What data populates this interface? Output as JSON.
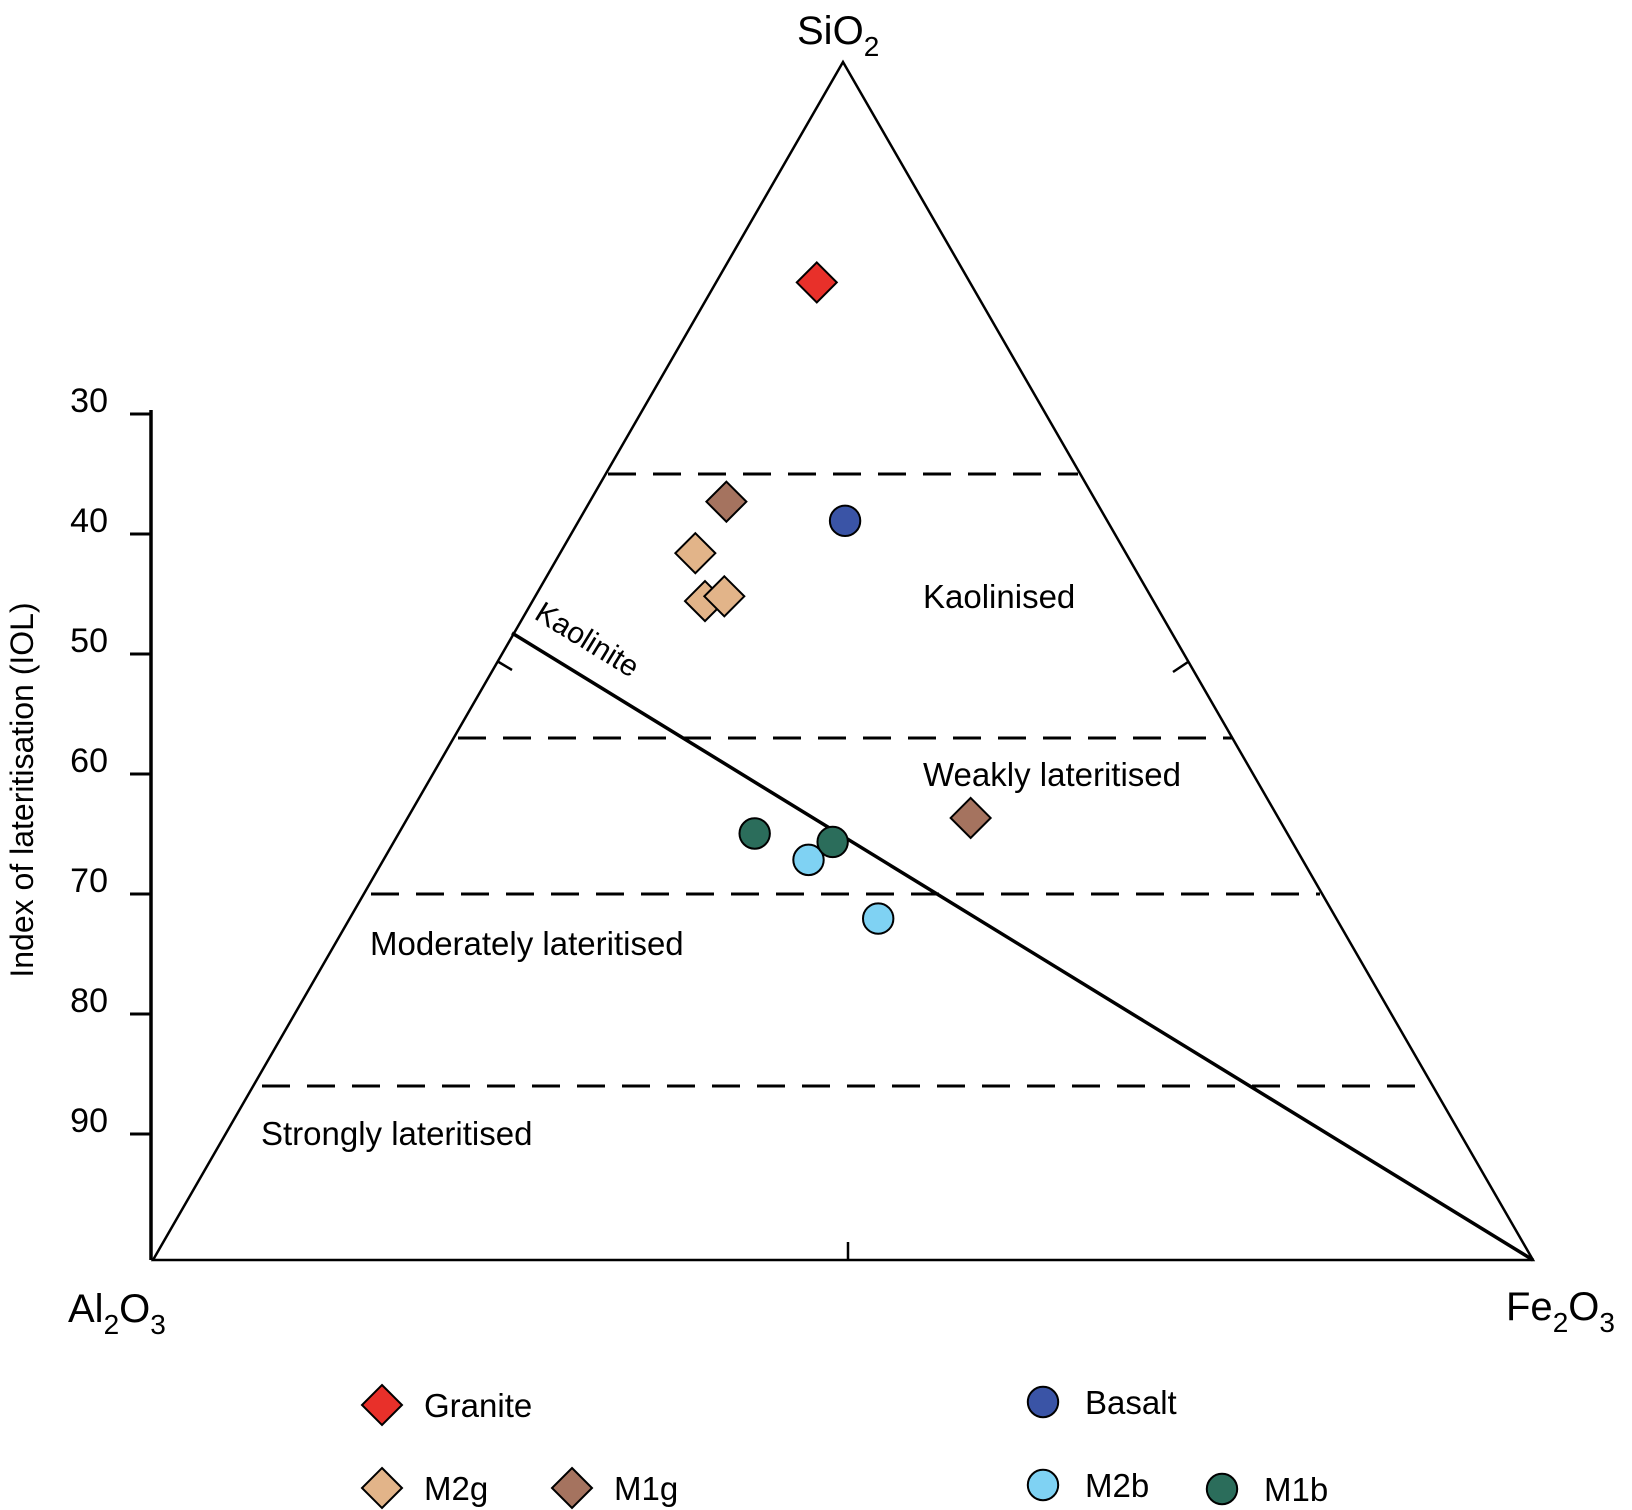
{
  "chart_data": {
    "type": "scatter",
    "subtype": "ternary",
    "apices": {
      "top": {
        "base": "SiO",
        "sub": "2"
      },
      "left": {
        "parts": [
          {
            "t": "Al"
          },
          {
            "s": "2"
          },
          {
            "t": "O"
          },
          {
            "s": "3"
          }
        ]
      },
      "right": {
        "parts": [
          {
            "t": "Fe"
          },
          {
            "s": "2"
          },
          {
            "t": "O"
          },
          {
            "s": "3"
          }
        ]
      }
    },
    "ylabel": "Index of lateritisation (IOL)",
    "iol_ticks": [
      30,
      40,
      50,
      60,
      70,
      80,
      90
    ],
    "iol_boundaries": [
      35,
      57,
      70,
      86
    ],
    "zones": [
      {
        "label": "Kaolinised"
      },
      {
        "label": "Weakly lateritised"
      },
      {
        "label": "Moderately lateritised"
      },
      {
        "label": "Strongly lateritised"
      }
    ],
    "kaolinite_line_label": "Kaolinite",
    "series": [
      {
        "name": "Granite",
        "marker": "diamond",
        "color": "#e8302a",
        "points": [
          {
            "SiO2": 81.6,
            "Al2O3": 11.1,
            "Fe2O3": 7.3
          }
        ]
      },
      {
        "name": "M2g",
        "marker": "diamond",
        "color": "#e2b489",
        "points": [
          {
            "SiO2": 59.0,
            "Al2O3": 31.2,
            "Fe2O3": 9.8
          },
          {
            "SiO2": 55.0,
            "Al2O3": 32.5,
            "Fe2O3": 12.5
          },
          {
            "SiO2": 55.4,
            "Al2O3": 30.9,
            "Fe2O3": 13.7
          }
        ]
      },
      {
        "name": "M1g",
        "marker": "diamond",
        "color": "#a5735f",
        "points": [
          {
            "SiO2": 63.3,
            "Al2O3": 26.8,
            "Fe2O3": 9.9
          },
          {
            "SiO2": 36.9,
            "Al2O3": 22.3,
            "Fe2O3": 40.8
          }
        ]
      },
      {
        "name": "Basalt",
        "marker": "circle",
        "color": "#3a54a6",
        "points": [
          {
            "SiO2": 61.7,
            "Al2O3": 19.0,
            "Fe2O3": 19.3
          }
        ]
      },
      {
        "name": "M2b",
        "marker": "circle",
        "color": "#7fd2f3",
        "points": [
          {
            "SiO2": 33.4,
            "Al2O3": 35.8,
            "Fe2O3": 30.8
          },
          {
            "SiO2": 28.5,
            "Al2O3": 33.2,
            "Fe2O3": 38.3
          }
        ]
      },
      {
        "name": "M1b",
        "marker": "circle",
        "color": "#2b6d5b",
        "points": [
          {
            "SiO2": 35.6,
            "Al2O3": 38.6,
            "Fe2O3": 25.8
          },
          {
            "SiO2": 34.9,
            "Al2O3": 33.3,
            "Fe2O3": 31.8
          }
        ]
      }
    ]
  }
}
